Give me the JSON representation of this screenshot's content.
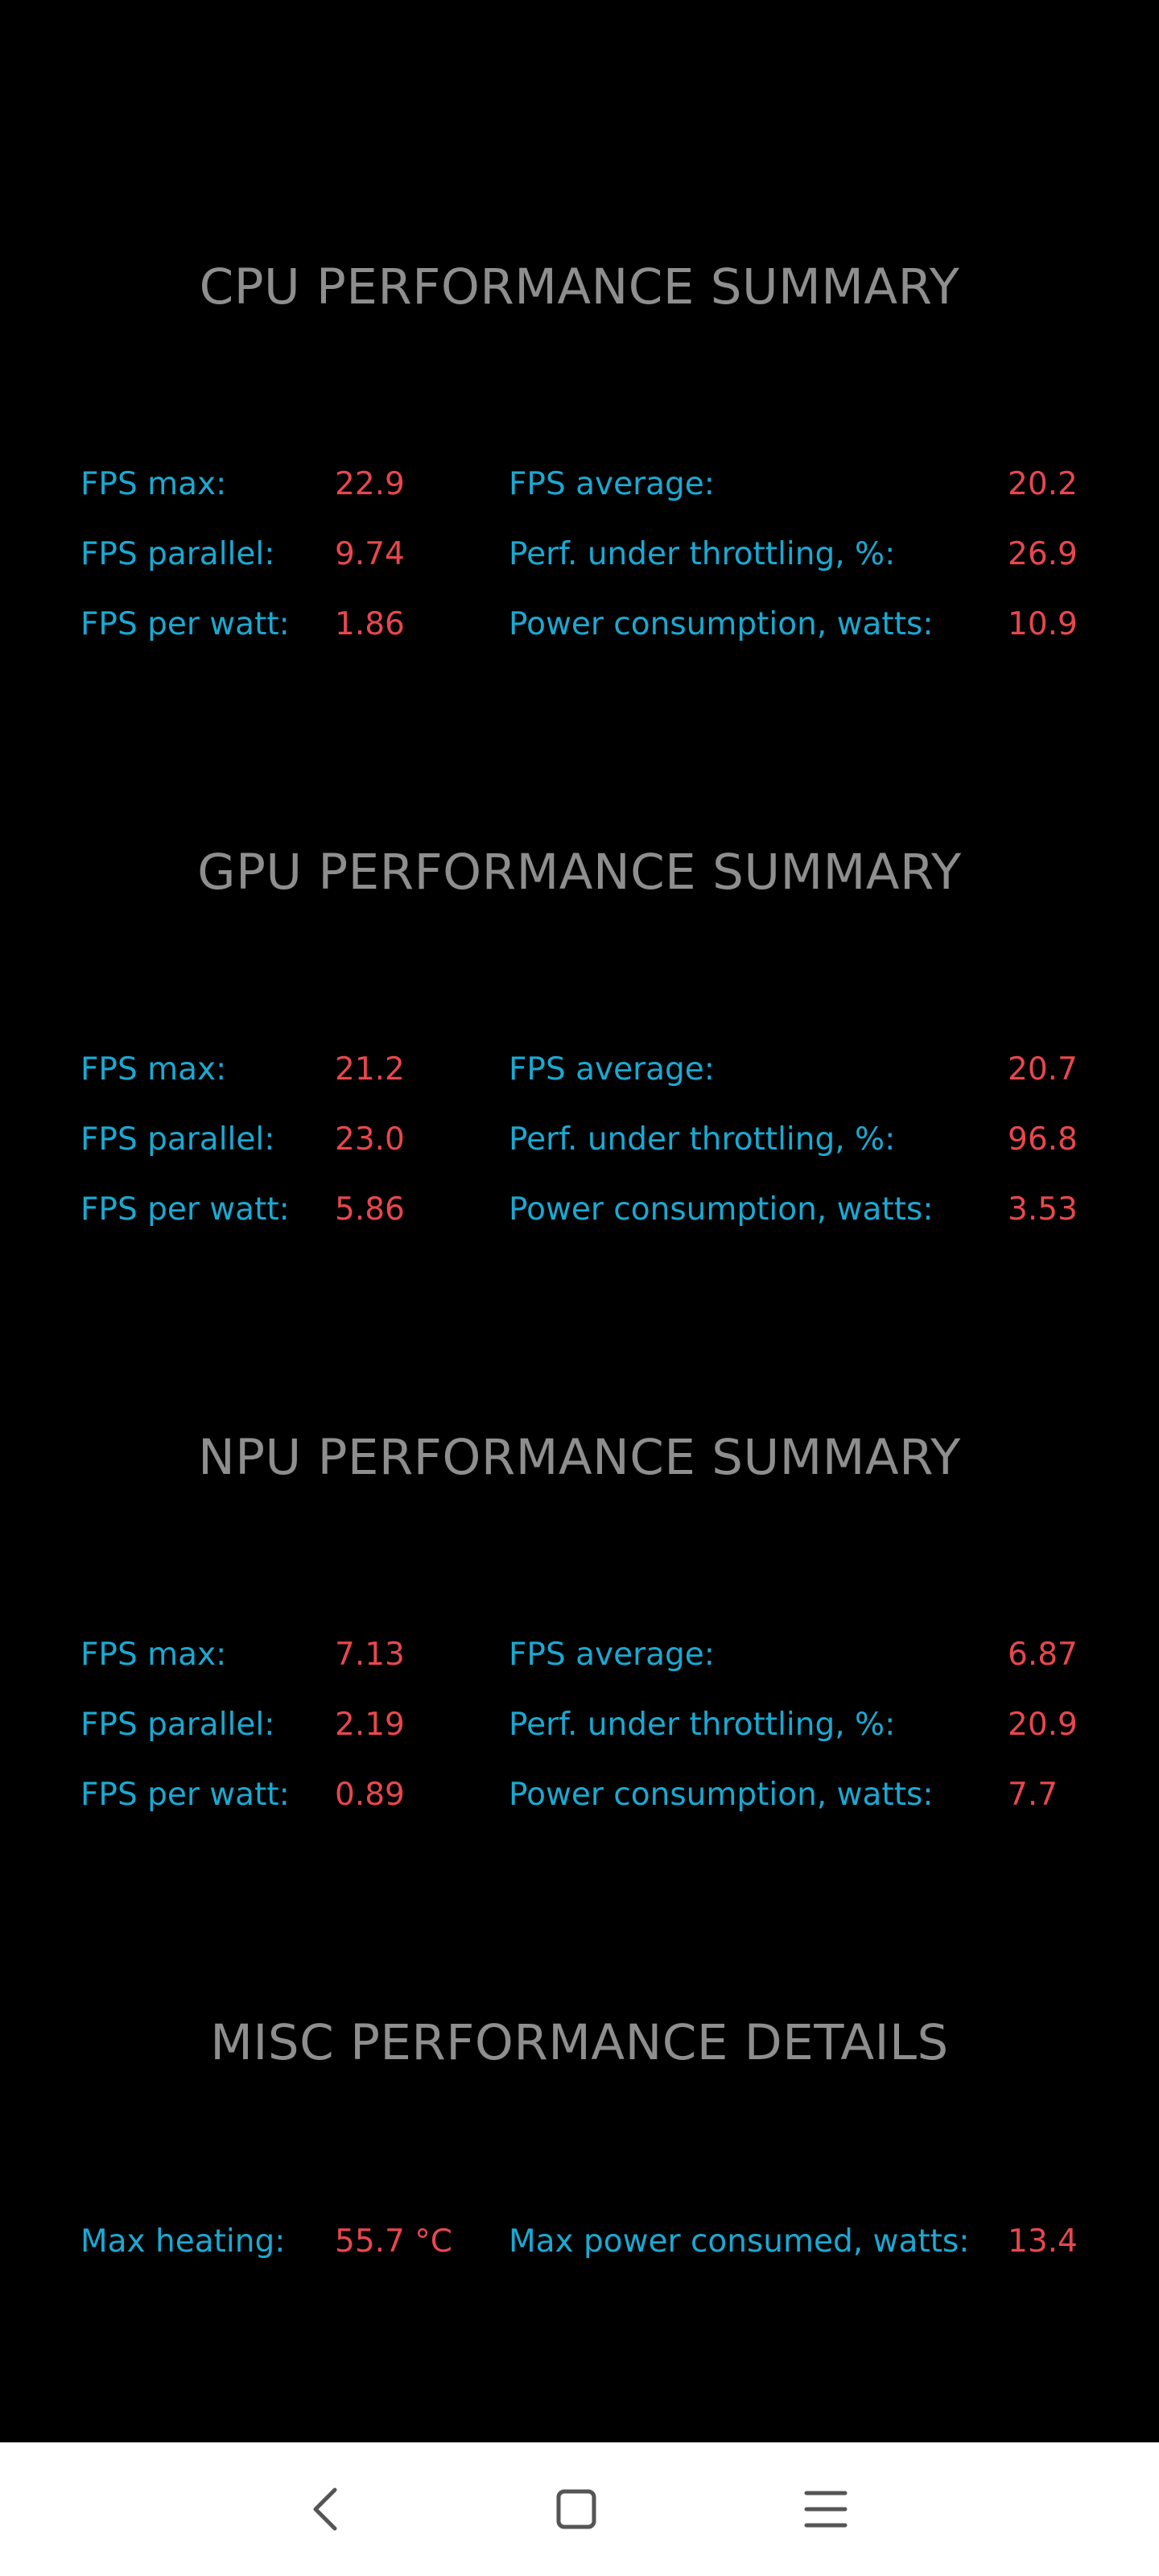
{
  "sections": [
    {
      "title": "CPU PERFORMANCE SUMMARY",
      "rows": [
        {
          "l1": "FPS max:",
          "v1": "22.9",
          "l2": "FPS average:",
          "v2": "20.2"
        },
        {
          "l1": "FPS parallel:",
          "v1": "9.74",
          "l2": "Perf. under throttling, %:",
          "v2": "26.9"
        },
        {
          "l1": "FPS per watt:",
          "v1": "1.86",
          "l2": "Power consumption, watts:",
          "v2": "10.9"
        }
      ]
    },
    {
      "title": "GPU PERFORMANCE SUMMARY",
      "rows": [
        {
          "l1": "FPS max:",
          "v1": "21.2",
          "l2": "FPS average:",
          "v2": "20.7"
        },
        {
          "l1": "FPS parallel:",
          "v1": "23.0",
          "l2": "Perf. under throttling, %:",
          "v2": "96.8"
        },
        {
          "l1": "FPS per watt:",
          "v1": "5.86",
          "l2": "Power consumption, watts:",
          "v2": "3.53"
        }
      ]
    },
    {
      "title": "NPU PERFORMANCE SUMMARY",
      "rows": [
        {
          "l1": "FPS max:",
          "v1": "7.13",
          "l2": "FPS average:",
          "v2": "6.87"
        },
        {
          "l1": "FPS parallel:",
          "v1": "2.19",
          "l2": "Perf. under throttling, %:",
          "v2": "20.9"
        },
        {
          "l1": "FPS per watt:",
          "v1": "0.89",
          "l2": "Power consumption, watts:",
          "v2": "7.7"
        }
      ]
    },
    {
      "title": "MISC PERFORMANCE DETAILS",
      "rows": [
        {
          "l1": "Max heating:",
          "v1": "55.7 °C",
          "l2": "Max power consumed, watts:",
          "v2": "13.4"
        }
      ]
    }
  ],
  "colors": {
    "background": "#000000",
    "title": "#8e8e8e",
    "label": "#1aa9d2",
    "value": "#e8474e",
    "navbar": "#ffffff",
    "nav_icon": "#555555"
  },
  "navbar": {
    "icons": [
      "back-icon",
      "home-icon",
      "menu-icon"
    ]
  }
}
